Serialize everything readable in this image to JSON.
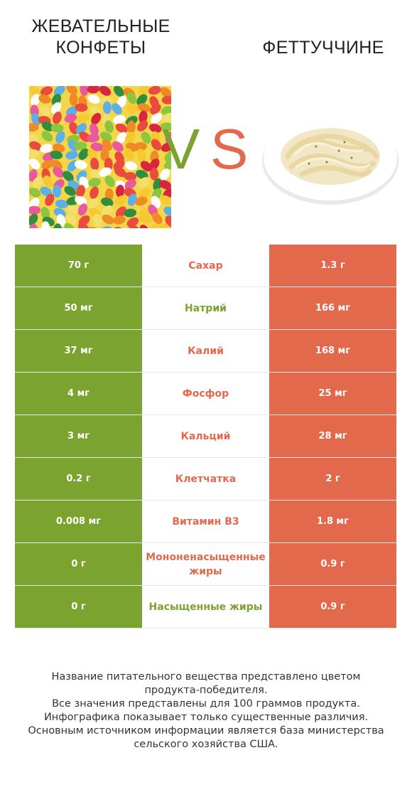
{
  "header": {
    "left_title": "ЖЕВАТЕЛЬНЫЕ КОНФЕТЫ",
    "right_title": "ФЕТТУЧЧИНЕ",
    "vs_v": "V",
    "vs_s": "S"
  },
  "colors": {
    "left_product": "#7ba32f",
    "right_product": "#e2694c"
  },
  "chart_data": {
    "type": "table",
    "columns": [
      "ЖЕВАТЕЛЬНЫЕ КОНФЕТЫ",
      "",
      "ФЕТТУЧЧИНЕ"
    ],
    "rows": [
      {
        "left": "70 г",
        "nutrient": "Сахар",
        "right": "1.3 г",
        "winner": "right"
      },
      {
        "left": "50 мг",
        "nutrient": "Натрий",
        "right": "166 мг",
        "winner": "left"
      },
      {
        "left": "37 мг",
        "nutrient": "Калий",
        "right": "168 мг",
        "winner": "right"
      },
      {
        "left": "4 мг",
        "nutrient": "Фосфор",
        "right": "25 мг",
        "winner": "right"
      },
      {
        "left": "3 мг",
        "nutrient": "Кальций",
        "right": "28 мг",
        "winner": "right"
      },
      {
        "left": "0.2 г",
        "nutrient": "Клетчатка",
        "right": "2 г",
        "winner": "right"
      },
      {
        "left": "0.008 мг",
        "nutrient": "Витамин B3",
        "right": "1.8 мг",
        "winner": "right"
      },
      {
        "left": "0 г",
        "nutrient": "Мононенасыщенные жиры",
        "right": "0.9 г",
        "winner": "right"
      },
      {
        "left": "0 г",
        "nutrient": "Насыщенные жиры",
        "right": "0.9 г",
        "winner": "left"
      }
    ]
  },
  "footer": {
    "lines": [
      "Название питательного вещества представлено цветом",
      "продукта-победителя.",
      "Все значения представлены для 100 граммов продукта.",
      "Инфографика показывает только существенные различия.",
      "Основным источником информации является база министерства",
      "сельского хозяйства США."
    ]
  }
}
